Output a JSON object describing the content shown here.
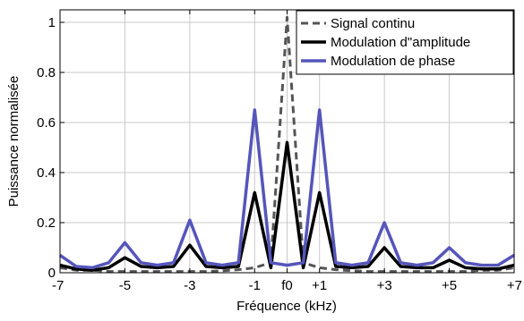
{
  "chart_data": {
    "type": "line",
    "xlabel": "Fréquence (kHz)",
    "ylabel": "Puissance normalisée",
    "xlim": [
      -7,
      7
    ],
    "ylim": [
      0,
      1.05
    ],
    "grid": true,
    "legend_position": "top-right",
    "x_ticks": [
      -7,
      -5,
      -3,
      -1,
      0,
      1,
      3,
      5,
      7
    ],
    "x_tick_labels": [
      "-7",
      "-5",
      "-3",
      "-1",
      "f0",
      "+1",
      "+3",
      "+5",
      "+7"
    ],
    "y_ticks": [
      0,
      0.2,
      0.4,
      0.6,
      0.8,
      1
    ],
    "y_tick_labels": [
      "0",
      "0.2",
      "0.4",
      "0.6",
      "0.8",
      "1"
    ],
    "x": [
      -7,
      -6.5,
      -6,
      -5.5,
      -5,
      -4.5,
      -4,
      -3.5,
      -3,
      -2.5,
      -2,
      -1.5,
      -1,
      -0.5,
      0,
      0.5,
      1,
      1.5,
      2,
      2.5,
      3,
      3.5,
      4,
      4.5,
      5,
      5.5,
      6,
      6.5,
      7
    ],
    "series": [
      {
        "name": "Signal continu",
        "color": "#555555",
        "style": "dashed",
        "values": [
          0.02,
          0.01,
          0.01,
          0.005,
          0.005,
          0.005,
          0.005,
          0.005,
          0.005,
          0.005,
          0.008,
          0.012,
          0.02,
          0.04,
          1.02,
          0.04,
          0.02,
          0.012,
          0.008,
          0.005,
          0.005,
          0.005,
          0.005,
          0.005,
          0.005,
          0.005,
          0.01,
          0.01,
          0.02
        ]
      },
      {
        "name": "Modulation d\"amplitude",
        "color": "#000000",
        "style": "solid",
        "values": [
          0.03,
          0.015,
          0.01,
          0.02,
          0.06,
          0.025,
          0.02,
          0.025,
          0.11,
          0.025,
          0.02,
          0.025,
          0.32,
          0.02,
          0.52,
          0.02,
          0.32,
          0.025,
          0.02,
          0.025,
          0.1,
          0.025,
          0.02,
          0.02,
          0.05,
          0.02,
          0.015,
          0.015,
          0.03
        ]
      },
      {
        "name": "Modulation de phase",
        "color": "#5555bb",
        "style": "solid",
        "values": [
          0.07,
          0.025,
          0.02,
          0.04,
          0.12,
          0.04,
          0.03,
          0.04,
          0.21,
          0.04,
          0.03,
          0.04,
          0.65,
          0.04,
          0.03,
          0.04,
          0.65,
          0.04,
          0.03,
          0.04,
          0.2,
          0.04,
          0.03,
          0.04,
          0.1,
          0.04,
          0.03,
          0.03,
          0.07
        ]
      }
    ]
  }
}
